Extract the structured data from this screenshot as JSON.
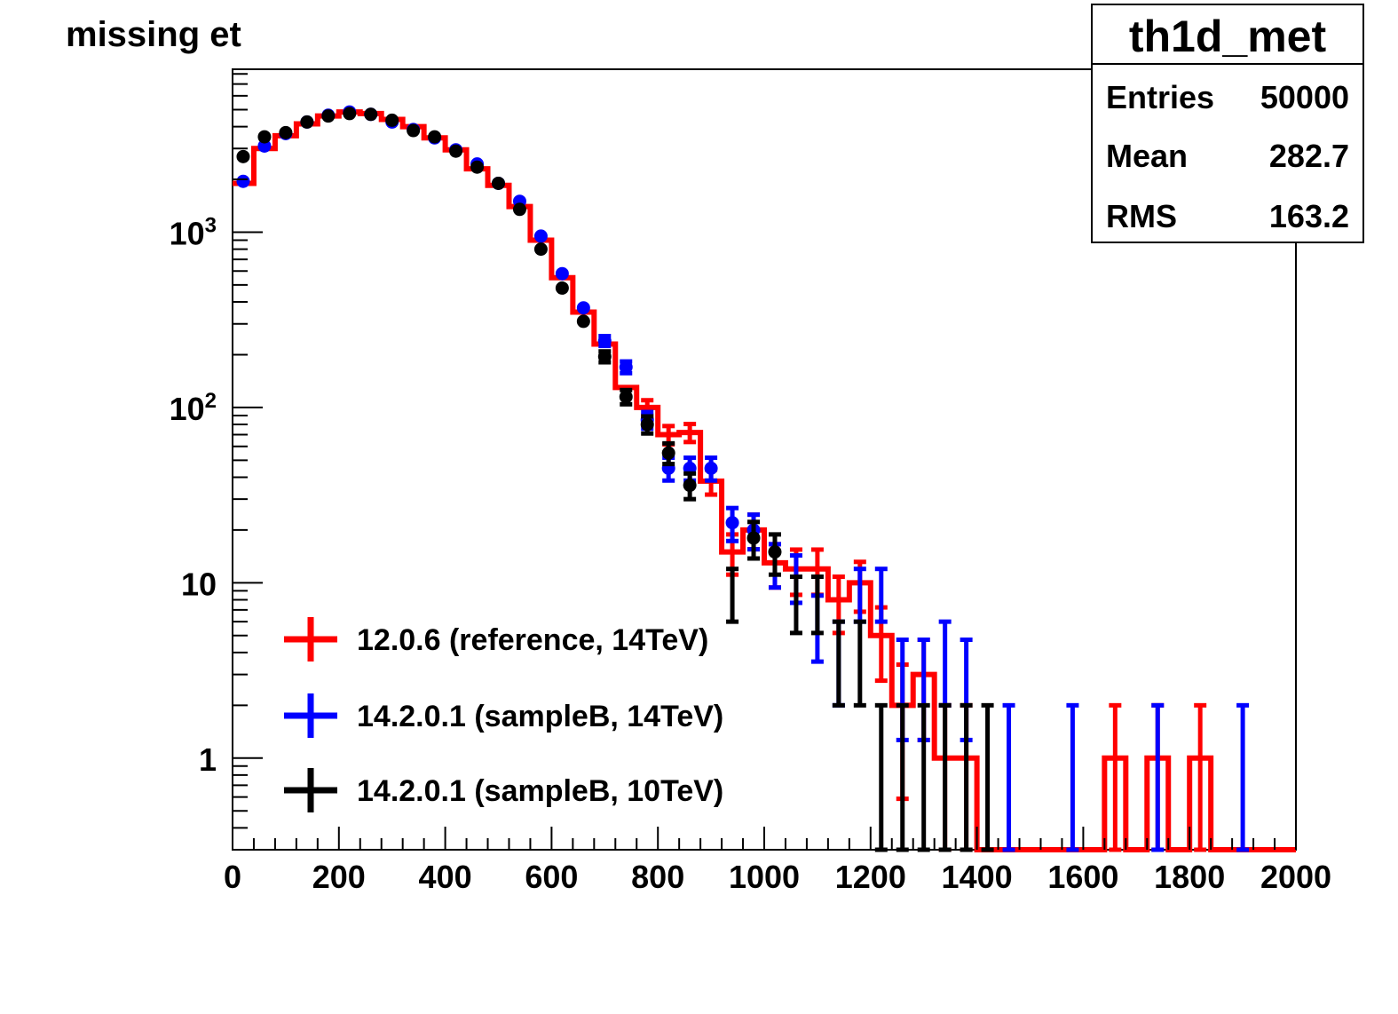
{
  "chart_data": {
    "type": "histogram",
    "title": "missing et",
    "xlabel": "",
    "ylabel": "",
    "xlim": [
      0,
      2000
    ],
    "ylim": [
      0.3,
      8500
    ],
    "yscale": "log",
    "bin_width": 40,
    "x_ticks": [
      "0",
      "200",
      "400",
      "600",
      "800",
      "1000",
      "1200",
      "1400",
      "1600",
      "1800",
      "2000"
    ],
    "y_ticks": [
      {
        "value": 1,
        "base": "1",
        "exp": ""
      },
      {
        "value": 10,
        "base": "10",
        "exp": ""
      },
      {
        "value": 100,
        "base": "10",
        "exp": "2"
      },
      {
        "value": 1000,
        "base": "10",
        "exp": "3"
      }
    ],
    "stats_box": {
      "name": "th1d_met",
      "rows": [
        {
          "label": "Entries",
          "value": "50000"
        },
        {
          "label": "Mean",
          "value": "282.7"
        },
        {
          "label": "RMS",
          "value": "163.2"
        }
      ]
    },
    "legend_position": "bottom-left",
    "series": [
      {
        "name": "12.0.6 (reference, 14TeV)",
        "color": "#ff0000",
        "values": [
          1900,
          3000,
          3550,
          4150,
          4600,
          4850,
          4750,
          4400,
          4000,
          3450,
          2950,
          2300,
          1850,
          1400,
          900,
          550,
          350,
          230,
          130,
          100,
          70,
          72,
          38,
          15,
          20,
          13,
          12,
          12,
          8,
          10,
          5,
          2,
          3,
          1,
          1,
          0,
          0,
          0,
          0,
          0,
          0,
          1,
          0,
          1,
          0,
          1,
          0,
          0,
          0,
          0
        ]
      },
      {
        "name": "14.2.0.1 (sampleB, 14TeV)",
        "color": "#0000ff",
        "values": [
          1950,
          3100,
          3650,
          4250,
          4650,
          4850,
          4700,
          4250,
          3850,
          3450,
          2950,
          2450,
          1900,
          1500,
          950,
          580,
          370,
          240,
          170,
          85,
          45,
          45,
          45,
          22,
          20,
          13,
          11,
          6,
          4,
          9,
          9,
          3,
          3,
          4,
          3,
          0,
          1,
          0,
          0,
          1,
          0,
          0,
          0,
          1,
          0,
          0,
          0,
          1,
          0,
          0
        ]
      },
      {
        "name": "14.2.0.1 (sampleB, 10TeV)",
        "color": "#000000",
        "values": [
          2700,
          3500,
          3700,
          4250,
          4600,
          4750,
          4700,
          4350,
          3800,
          3500,
          2900,
          2350,
          1900,
          1350,
          800,
          480,
          310,
          195,
          115,
          80,
          55,
          36,
          0,
          9,
          18,
          15,
          8,
          8,
          4,
          4,
          1,
          1,
          1,
          1,
          1,
          1,
          0,
          0,
          0,
          0,
          0,
          0,
          0,
          0,
          0,
          0,
          0,
          0,
          0,
          0
        ]
      }
    ]
  }
}
